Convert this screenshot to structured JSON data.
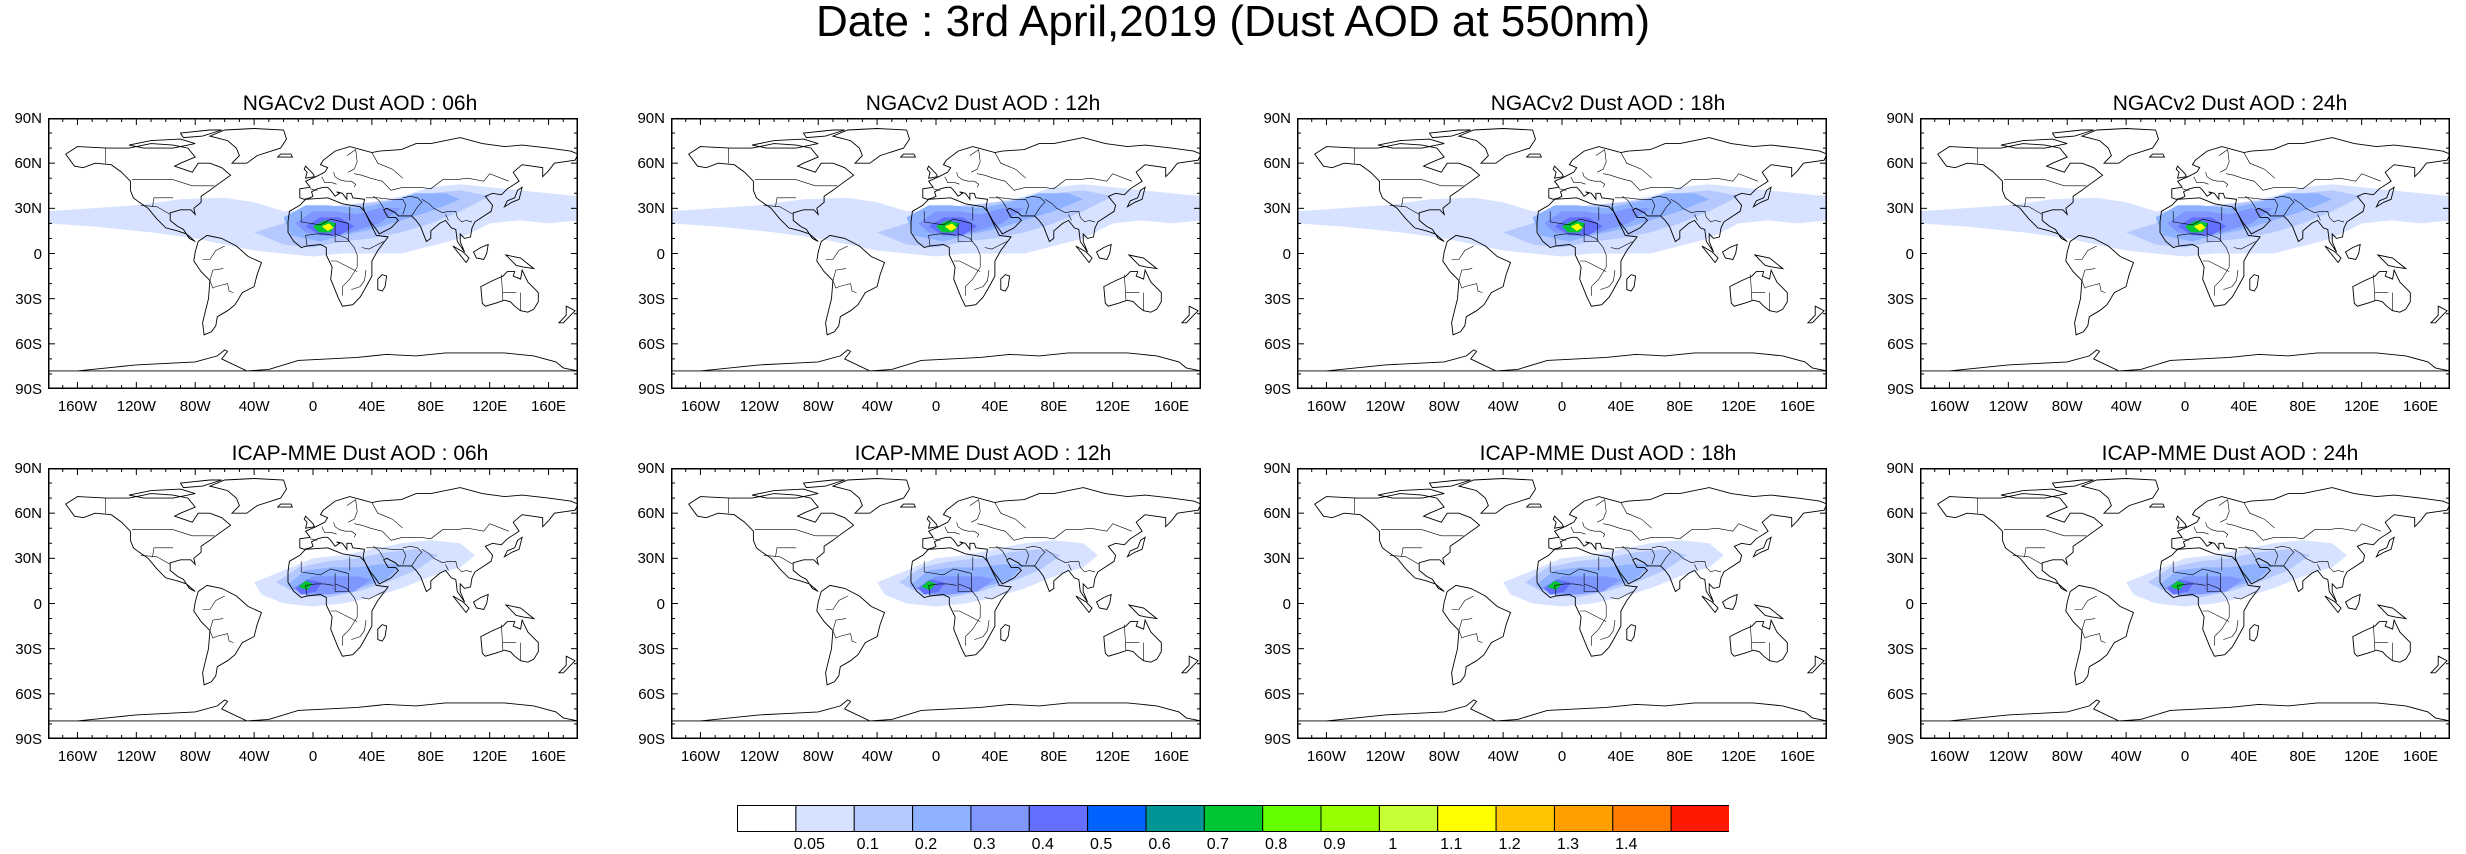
{
  "title": "Date : 3rd April,2019 (Dust AOD at 550nm)",
  "panels": [
    {
      "title": "NGACv2 Dust AOD : 06h",
      "row": 0,
      "col": 0,
      "model": "NGACv2"
    },
    {
      "title": "NGACv2 Dust AOD : 12h",
      "row": 0,
      "col": 1,
      "model": "NGACv2"
    },
    {
      "title": "NGACv2 Dust AOD : 18h",
      "row": 0,
      "col": 2,
      "model": "NGACv2"
    },
    {
      "title": "NGACv2 Dust AOD : 24h",
      "row": 0,
      "col": 3,
      "model": "NGACv2"
    },
    {
      "title": "ICAP-MME Dust AOD : 06h",
      "row": 1,
      "col": 0,
      "model": "ICAP-MME"
    },
    {
      "title": "ICAP-MME Dust AOD : 12h",
      "row": 1,
      "col": 1,
      "model": "ICAP-MME"
    },
    {
      "title": "ICAP-MME Dust AOD : 18h",
      "row": 1,
      "col": 2,
      "model": "ICAP-MME"
    },
    {
      "title": "ICAP-MME Dust AOD : 24h",
      "row": 1,
      "col": 3,
      "model": "ICAP-MME"
    }
  ],
  "lat_ticks": [
    "90N",
    "60N",
    "30N",
    "0",
    "30S",
    "60S",
    "90S"
  ],
  "lon_ticks": [
    "160W",
    "120W",
    "80W",
    "40W",
    "0",
    "40E",
    "80E",
    "120E",
    "160E"
  ],
  "colorbar": {
    "levels": [
      "0.05",
      "0.1",
      "0.2",
      "0.3",
      "0.4",
      "0.5",
      "0.6",
      "0.7",
      "0.8",
      "0.9",
      "1",
      "1.1",
      "1.2",
      "1.3",
      "1.4"
    ],
    "colors": [
      "#ffffff",
      "#d6e2ff",
      "#b5c9ff",
      "#8eb2ff",
      "#7f96ff",
      "#6370ff",
      "#0063ff",
      "#009696",
      "#00c633",
      "#63ff00",
      "#96ff00",
      "#c6ff33",
      "#ffff00",
      "#ffc600",
      "#ffa000",
      "#ff7c00",
      "#ff1900"
    ]
  }
}
